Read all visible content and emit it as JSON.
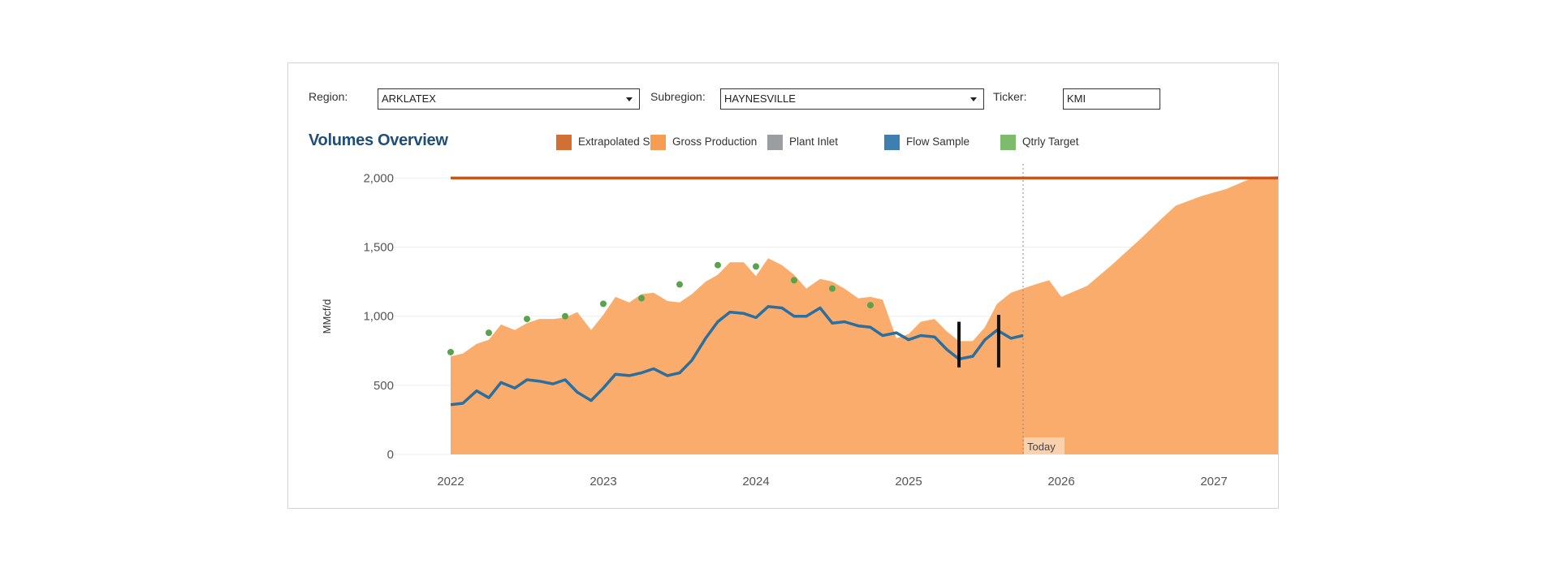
{
  "filters": {
    "region_label": "Region:",
    "region_value": "ARKLATEX",
    "subregion_label": "Subregion:",
    "subregion_value": "HAYNESVILLE",
    "ticker_label": "Ticker:",
    "ticker_value": "KMI"
  },
  "title": "Volumes Overview",
  "legend": [
    {
      "label": "Extrapolated S...",
      "color": "#d16f35"
    },
    {
      "label": "Gross Production",
      "color": "#f79d51"
    },
    {
      "label": "Plant Inlet",
      "color": "#9a9ea3"
    },
    {
      "label": "Flow Sample",
      "color": "#3e7fb2"
    },
    {
      "label": "Qtrly Target",
      "color": "#7cbc6c"
    }
  ],
  "chart_data": {
    "type": "area",
    "title": "Volumes Overview",
    "ylabel": "MMcf/d",
    "xlabel": "",
    "ylim": [
      0,
      2000
    ],
    "yticks": [
      0,
      500,
      1000,
      1500,
      2000
    ],
    "ytick_labels": [
      "0",
      "500",
      "1,000",
      "1,500",
      "2,000"
    ],
    "xticks": [
      2022,
      2023,
      2024,
      2025,
      2026,
      2027
    ],
    "xtick_labels": [
      "2022",
      "2023",
      "2024",
      "2025",
      "2026",
      "2027"
    ],
    "xlim": [
      2021.9,
      2027.5
    ],
    "today_x": 2025.75,
    "today_label": "Today",
    "gridlines": true,
    "legend_position": "top",
    "series": [
      {
        "name": "Extrapolated S...",
        "kind": "line",
        "color": "#c8561c",
        "x": [
          2022.0,
          2027.5
        ],
        "y": [
          2000,
          2000
        ]
      },
      {
        "name": "Gross Production",
        "kind": "area",
        "color": "#f9ac6b",
        "x": [
          2022.0,
          2022.08,
          2022.17,
          2022.25,
          2022.33,
          2022.42,
          2022.5,
          2022.58,
          2022.67,
          2022.75,
          2022.83,
          2022.92,
          2023.0,
          2023.08,
          2023.17,
          2023.25,
          2023.33,
          2023.42,
          2023.5,
          2023.58,
          2023.67,
          2023.75,
          2023.83,
          2023.92,
          2024.0,
          2024.08,
          2024.17,
          2024.25,
          2024.33,
          2024.42,
          2024.5,
          2024.58,
          2024.67,
          2024.75,
          2024.83,
          2024.92,
          2025.0,
          2025.08,
          2025.17,
          2025.25,
          2025.33,
          2025.42,
          2025.5,
          2025.58,
          2025.67,
          2025.75,
          2025.83,
          2025.92,
          2026.0,
          2026.17,
          2026.33,
          2026.5,
          2026.67,
          2026.75,
          2026.92,
          2027.08,
          2027.25,
          2027.5
        ],
        "y": [
          710,
          730,
          800,
          830,
          940,
          900,
          950,
          980,
          980,
          990,
          1030,
          900,
          1010,
          1140,
          1100,
          1160,
          1170,
          1110,
          1100,
          1160,
          1250,
          1300,
          1390,
          1390,
          1290,
          1420,
          1370,
          1300,
          1200,
          1270,
          1250,
          1200,
          1130,
          1140,
          1120,
          840,
          870,
          960,
          980,
          890,
          820,
          820,
          920,
          1090,
          1170,
          1200,
          1230,
          1260,
          1140,
          1220,
          1370,
          1540,
          1720,
          1800,
          1870,
          1920,
          2000,
          2020
        ]
      },
      {
        "name": "Flow Sample",
        "kind": "line",
        "color": "#2c6e9e",
        "x": [
          2022.0,
          2022.08,
          2022.17,
          2022.25,
          2022.33,
          2022.42,
          2022.5,
          2022.58,
          2022.67,
          2022.75,
          2022.83,
          2022.92,
          2023.0,
          2023.08,
          2023.17,
          2023.25,
          2023.33,
          2023.42,
          2023.5,
          2023.58,
          2023.67,
          2023.75,
          2023.83,
          2023.92,
          2024.0,
          2024.08,
          2024.17,
          2024.25,
          2024.33,
          2024.42,
          2024.5,
          2024.58,
          2024.67,
          2024.75,
          2024.83,
          2024.92,
          2025.0,
          2025.08,
          2025.17,
          2025.25,
          2025.33,
          2025.42,
          2025.5,
          2025.58,
          2025.67,
          2025.75
        ],
        "y": [
          360,
          370,
          460,
          410,
          520,
          480,
          540,
          530,
          510,
          540,
          450,
          390,
          480,
          580,
          570,
          590,
          620,
          570,
          590,
          680,
          840,
          960,
          1030,
          1020,
          990,
          1070,
          1060,
          1000,
          1000,
          1060,
          950,
          960,
          930,
          920,
          860,
          880,
          830,
          860,
          850,
          760,
          690,
          710,
          830,
          900,
          840,
          860
        ]
      },
      {
        "name": "Qtrly Target",
        "kind": "scatter",
        "color": "#5aa24b",
        "x": [
          2022.0,
          2022.25,
          2022.5,
          2022.75,
          2023.0,
          2023.25,
          2023.5,
          2023.75,
          2024.0,
          2024.25,
          2024.5,
          2024.75
        ],
        "y": [
          740,
          880,
          980,
          1000,
          1090,
          1130,
          1230,
          1370,
          1360,
          1260,
          1200,
          1080
        ]
      },
      {
        "name": "Plant Inlet",
        "kind": "marker",
        "color": "#111111",
        "x": [
          2025.33,
          2025.59
        ],
        "low": [
          630,
          630
        ],
        "high": [
          960,
          1010
        ]
      }
    ]
  }
}
